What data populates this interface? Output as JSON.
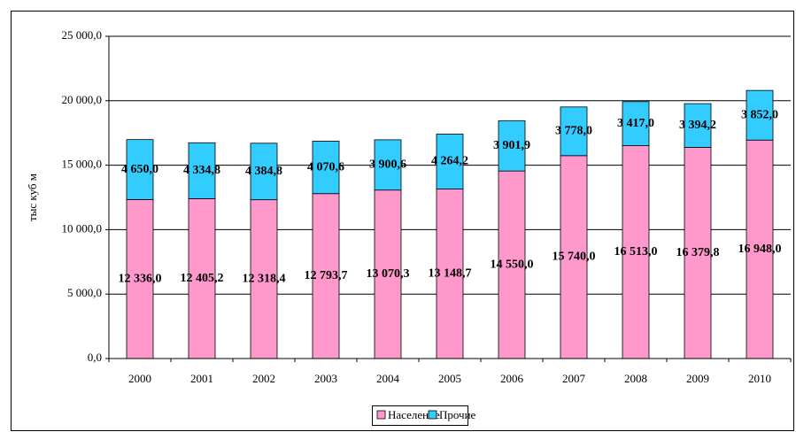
{
  "chart_data": {
    "type": "stacked-bar",
    "y_label": "тыс куб м",
    "categories": [
      "2000",
      "2001",
      "2002",
      "2003",
      "2004",
      "2005",
      "2006",
      "2007",
      "2008",
      "2009",
      "2010"
    ],
    "series": [
      {
        "name": "Население",
        "color": "#ff99cc",
        "values": [
          12336.0,
          12405.2,
          12318.4,
          12793.7,
          13070.3,
          13148.7,
          14550.0,
          15740.0,
          16513.0,
          16379.8,
          16948.0
        ],
        "value_labels": [
          "12 336,0",
          "12 405,2",
          "12 318,4",
          "12 793,7",
          "13 070,3",
          "13 148,7",
          "14 550,0",
          "15 740,0",
          "16 513,0",
          "16 379,8",
          "16 948,0"
        ]
      },
      {
        "name": "Прочие",
        "color": "#33ccff",
        "values": [
          4650.0,
          4334.8,
          4384.8,
          4070.6,
          3900.6,
          4264.2,
          3901.9,
          3778.0,
          3417.0,
          3394.2,
          3852.0
        ],
        "value_labels": [
          "4 650,0",
          "4 334,8",
          "4 384,8",
          "4 070,6",
          "3 900,6",
          "4 264,2",
          "3 901,9",
          "3 778,0",
          "3 417,0",
          "3 394,2",
          "3 852,0"
        ]
      }
    ],
    "ylim": [
      0,
      25000
    ],
    "yticks": [
      {
        "value": 0,
        "label": "0,0"
      },
      {
        "value": 5000,
        "label": "5 000,0"
      },
      {
        "value": 10000,
        "label": "10 000,0"
      },
      {
        "value": 15000,
        "label": "15 000,0"
      },
      {
        "value": 20000,
        "label": "20 000,0"
      },
      {
        "value": 25000,
        "label": "25 000,0"
      }
    ],
    "grid": true,
    "legend": "bottom"
  }
}
